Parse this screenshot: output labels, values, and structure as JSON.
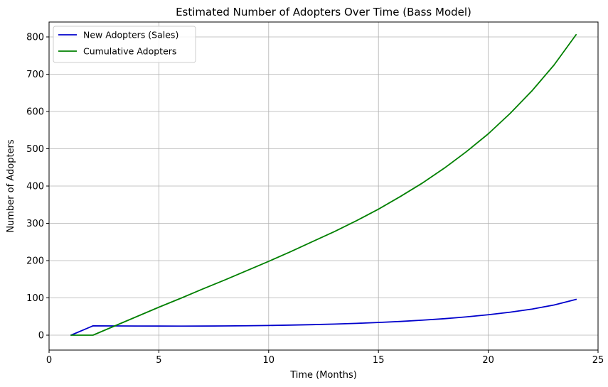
{
  "chart_data": {
    "type": "line",
    "title": "Estimated Number of Adopters Over Time (Bass Model)",
    "xlabel": "Time (Months)",
    "ylabel": "Number of Adopters",
    "xlim": [
      0,
      25
    ],
    "ylim": [
      -40,
      840
    ],
    "xticks": [
      0,
      5,
      10,
      15,
      20,
      25
    ],
    "yticks": [
      0,
      100,
      200,
      300,
      400,
      500,
      600,
      700,
      800
    ],
    "grid": true,
    "legend_position": "top-left",
    "x": [
      1,
      2,
      3,
      4,
      5,
      6,
      7,
      8,
      9,
      10,
      11,
      12,
      13,
      14,
      15,
      16,
      17,
      18,
      19,
      20,
      21,
      22,
      23,
      24
    ],
    "series": [
      {
        "name": "New Adopters (Sales)",
        "color": "#0000cc",
        "values": [
          0,
          25,
          24.8,
          24.6,
          24.4,
          24.3,
          24.4,
          24.7,
          25.2,
          26,
          27,
          28.2,
          29.8,
          31.7,
          34,
          36.8,
          40.2,
          44.2,
          49,
          54.8,
          61.7,
          70,
          81,
          96
        ]
      },
      {
        "name": "Cumulative Adopters",
        "color": "#008000",
        "values": [
          0,
          0,
          25,
          50,
          75,
          99,
          124,
          148,
          173,
          198,
          224,
          251,
          278,
          307,
          338,
          372,
          408,
          448,
          492,
          540,
          595,
          656,
          725,
          806
        ]
      }
    ]
  }
}
